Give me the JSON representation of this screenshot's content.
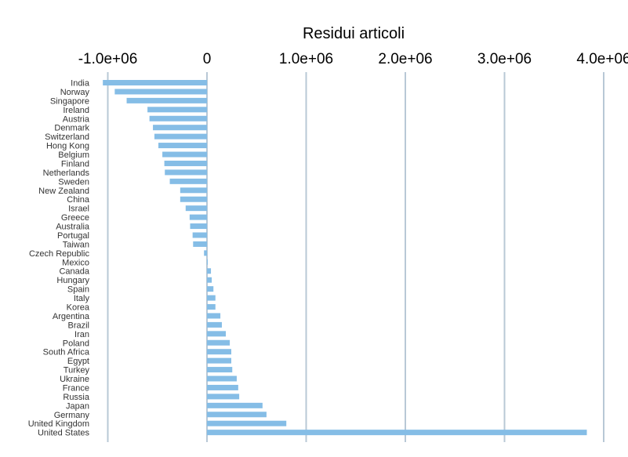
{
  "chart_data": {
    "type": "bar",
    "orientation": "horizontal",
    "title": "Residui articoli",
    "xlabel": "",
    "ylabel": "",
    "xlim": [
      -1100000,
      4250000
    ],
    "x_ticks": [
      {
        "value": -1000000,
        "label": "-1.0e+06"
      },
      {
        "value": 0,
        "label": "0"
      },
      {
        "value": 1000000,
        "label": "1.0e+06"
      },
      {
        "value": 2000000,
        "label": "2.0e+06"
      },
      {
        "value": 3000000,
        "label": "3.0e+06"
      },
      {
        "value": 4000000,
        "label": "4.0e+06"
      }
    ],
    "x_axis_position": "top",
    "grid": "vertical",
    "bar_color": "#85bde6",
    "grid_color": "#b8c8d6",
    "categories": [
      "India",
      "Norway",
      "Singapore",
      "Ireland",
      "Austria",
      "Denmark",
      "Switzerland",
      "Hong Kong",
      "Belgium",
      "Finland",
      "Netherlands",
      "Sweden",
      "New Zealand",
      "China",
      "Israel",
      "Greece",
      "Australia",
      "Portugal",
      "Taiwan",
      "Czech Republic",
      "Mexico",
      "Canada",
      "Hungary",
      "Spain",
      "Italy",
      "Korea",
      "Argentina",
      "Brazil",
      "Iran",
      "Poland",
      "South Africa",
      "Egypt",
      "Turkey",
      "Ukraine",
      "France",
      "Russia",
      "Japan",
      "Germany",
      "United Kingdom",
      "United States"
    ],
    "values": [
      -1050000,
      -930000,
      -810000,
      -600000,
      -580000,
      -545000,
      -530000,
      -490000,
      -450000,
      -430000,
      -425000,
      -375000,
      -270000,
      -270000,
      -215000,
      -175000,
      -170000,
      -145000,
      -140000,
      -30000,
      5000,
      40000,
      48000,
      65000,
      85000,
      85000,
      135000,
      150000,
      190000,
      230000,
      245000,
      245000,
      255000,
      300000,
      315000,
      325000,
      560000,
      600000,
      800000,
      3830000
    ]
  }
}
